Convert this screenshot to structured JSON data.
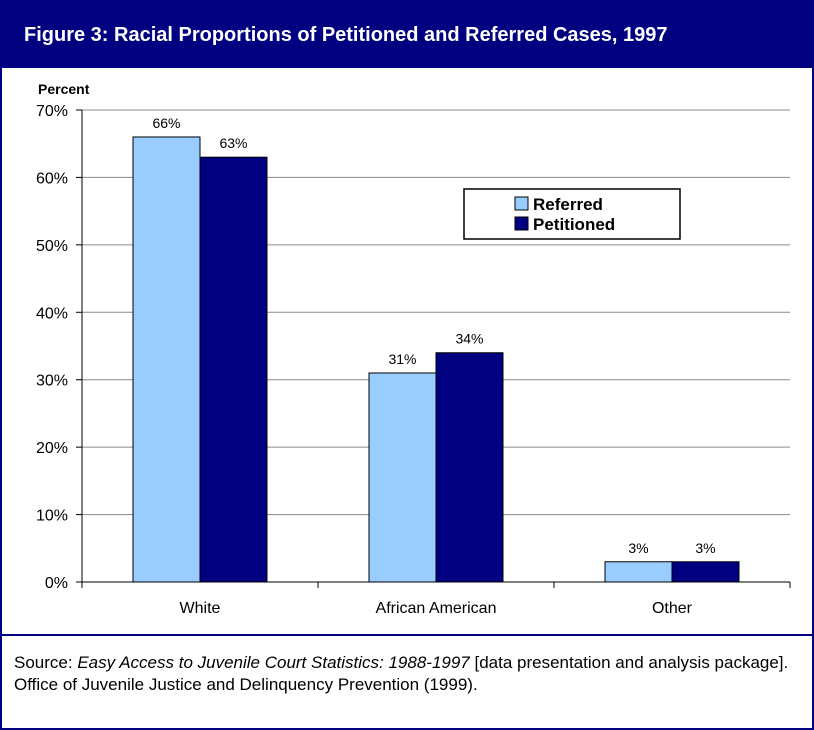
{
  "header": {
    "title": "Figure 3: Racial Proportions of Petitioned and Referred Cases, 1997"
  },
  "source": {
    "prefix": "Source: ",
    "title": "Easy Access to Juvenile Court Statistics: 1988-1997",
    "suffix": " [data presentation and analysis package].  Office of Juvenile Justice and Delinquency Prevention (1999)."
  },
  "chart_data": {
    "type": "bar",
    "title": "",
    "ylabel": "Percent",
    "xlabel": "",
    "categories": [
      "White",
      "African American",
      "Other"
    ],
    "series": [
      {
        "name": "Referred",
        "values": [
          66,
          31,
          3
        ],
        "labels": [
          "66%",
          "31%",
          "3%"
        ],
        "color": "#99ccff"
      },
      {
        "name": "Petitioned",
        "values": [
          63,
          34,
          3
        ],
        "labels": [
          "63%",
          "34%",
          "3%"
        ],
        "color": "#000080"
      }
    ],
    "ylim": [
      0,
      70
    ],
    "yticks": [
      0,
      10,
      20,
      30,
      40,
      50,
      60,
      70
    ],
    "ytick_labels": [
      "0%",
      "10%",
      "20%",
      "30%",
      "40%",
      "50%",
      "60%",
      "70%"
    ],
    "grid": true,
    "legend": "upper-right"
  }
}
